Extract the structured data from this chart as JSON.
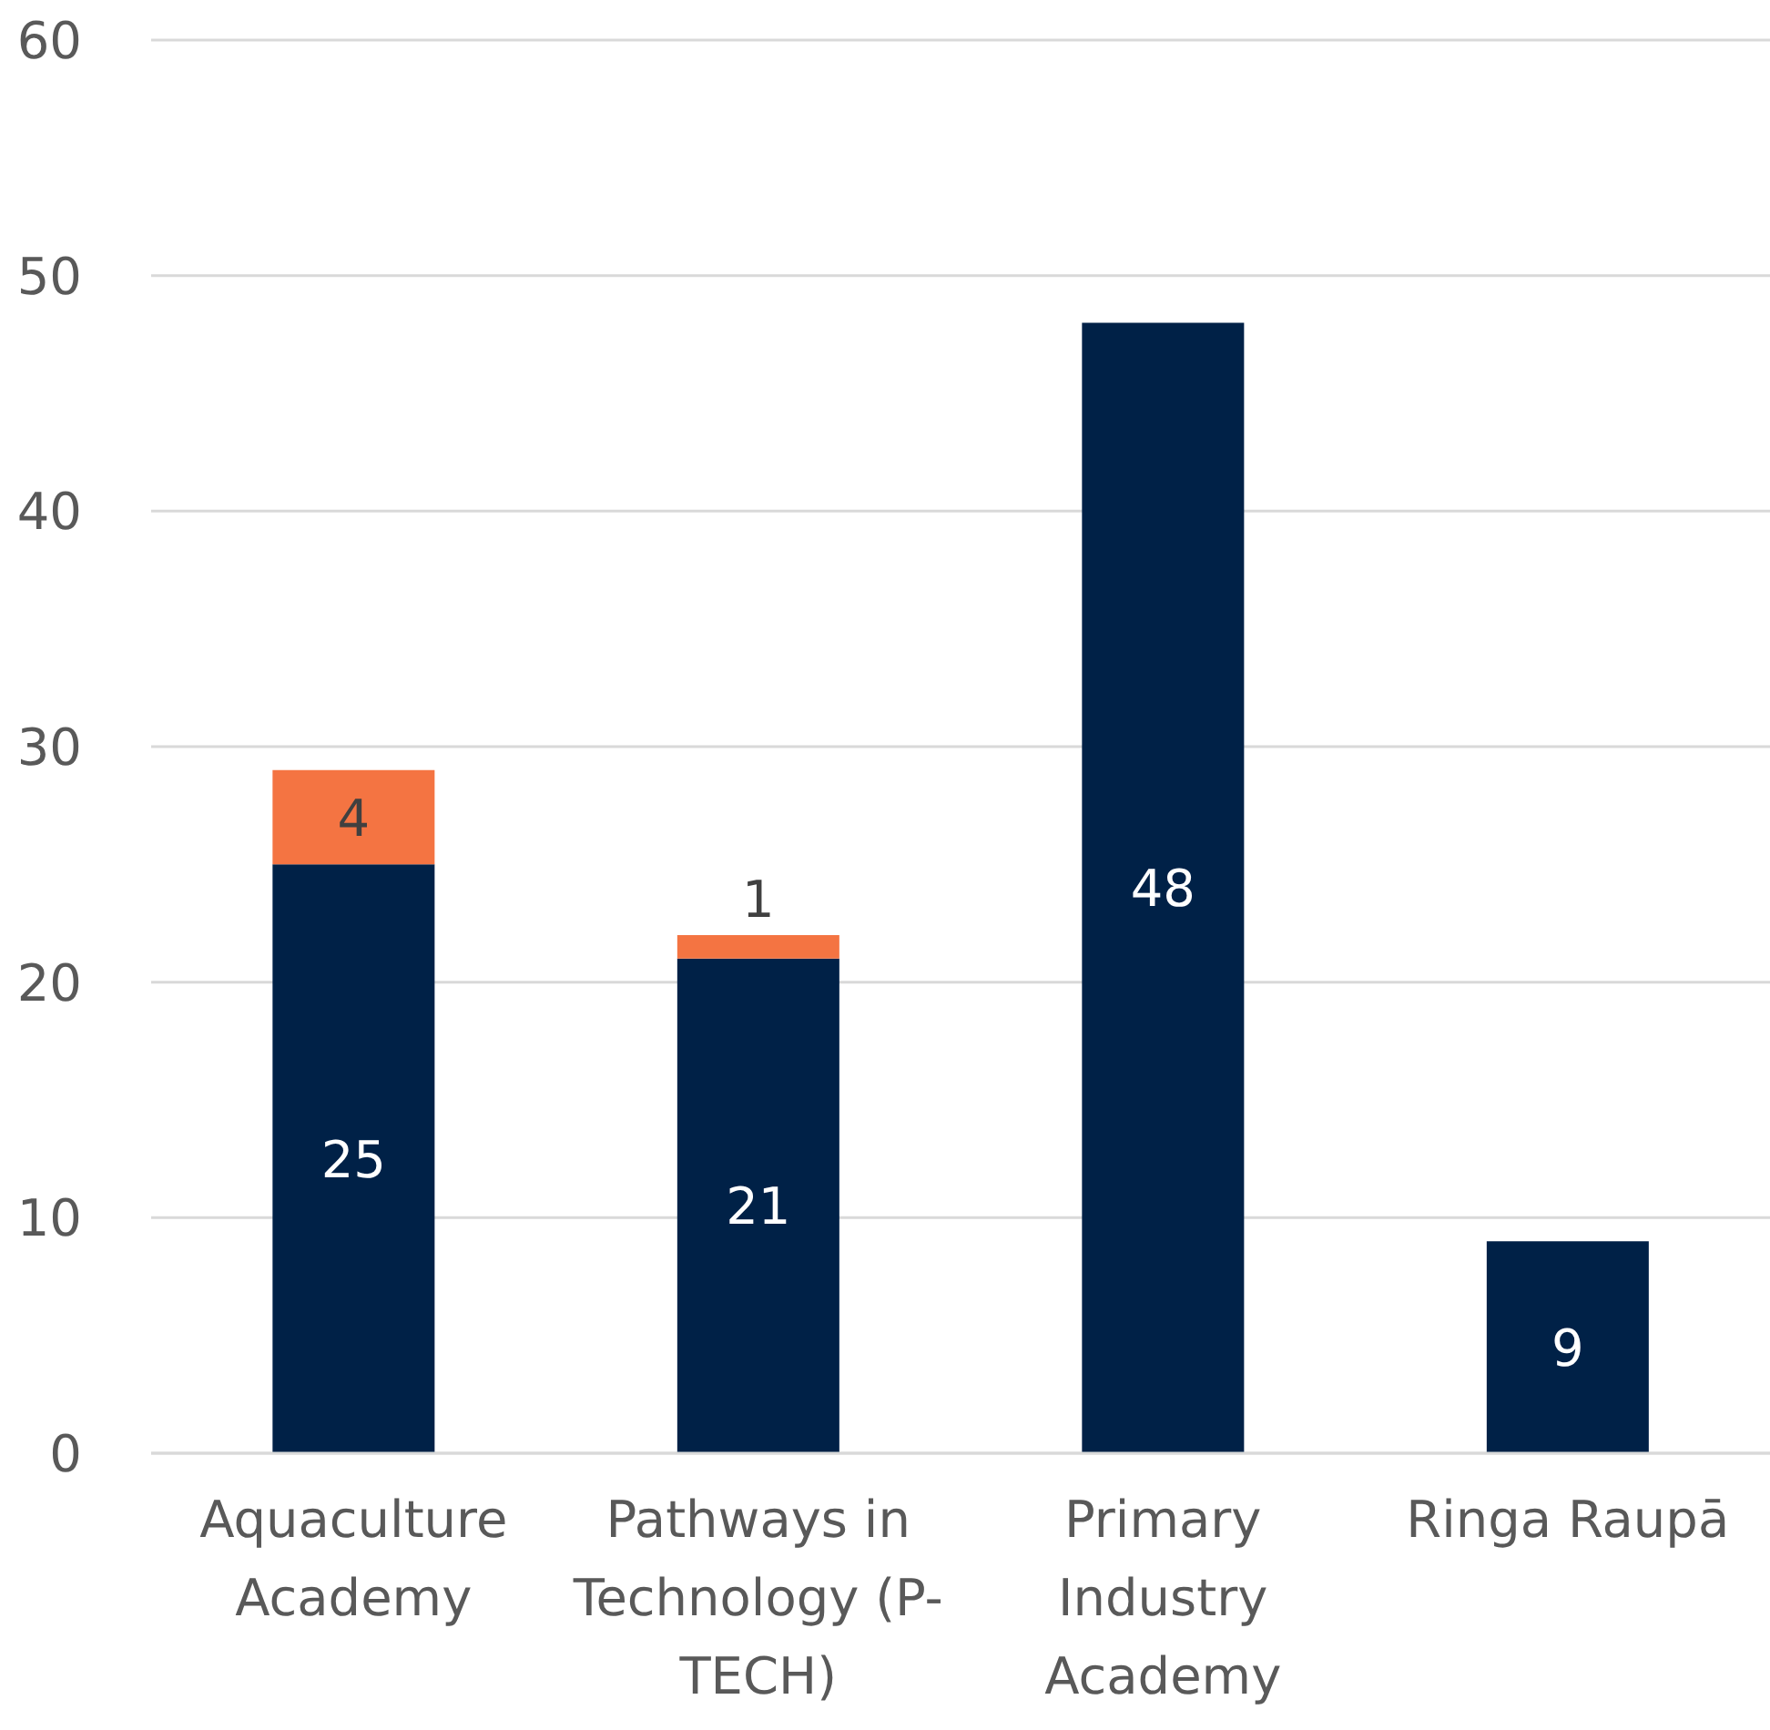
{
  "chart_data": {
    "type": "bar",
    "stacked": true,
    "categories": [
      "Aquaculture Academy",
      "Pathways in Technology (P-TECH)",
      "Primary Industry Academy",
      "Ringa Raupā"
    ],
    "series": [
      {
        "color": "#002147",
        "values": [
          25,
          21,
          48,
          9
        ]
      },
      {
        "color": "#f47442",
        "values": [
          4,
          1,
          null,
          null
        ]
      }
    ],
    "ylim": [
      0,
      60
    ],
    "yticks": [
      0,
      10,
      20,
      30,
      40,
      50,
      60
    ],
    "grid": "y",
    "legend": false,
    "data_labels": true
  }
}
